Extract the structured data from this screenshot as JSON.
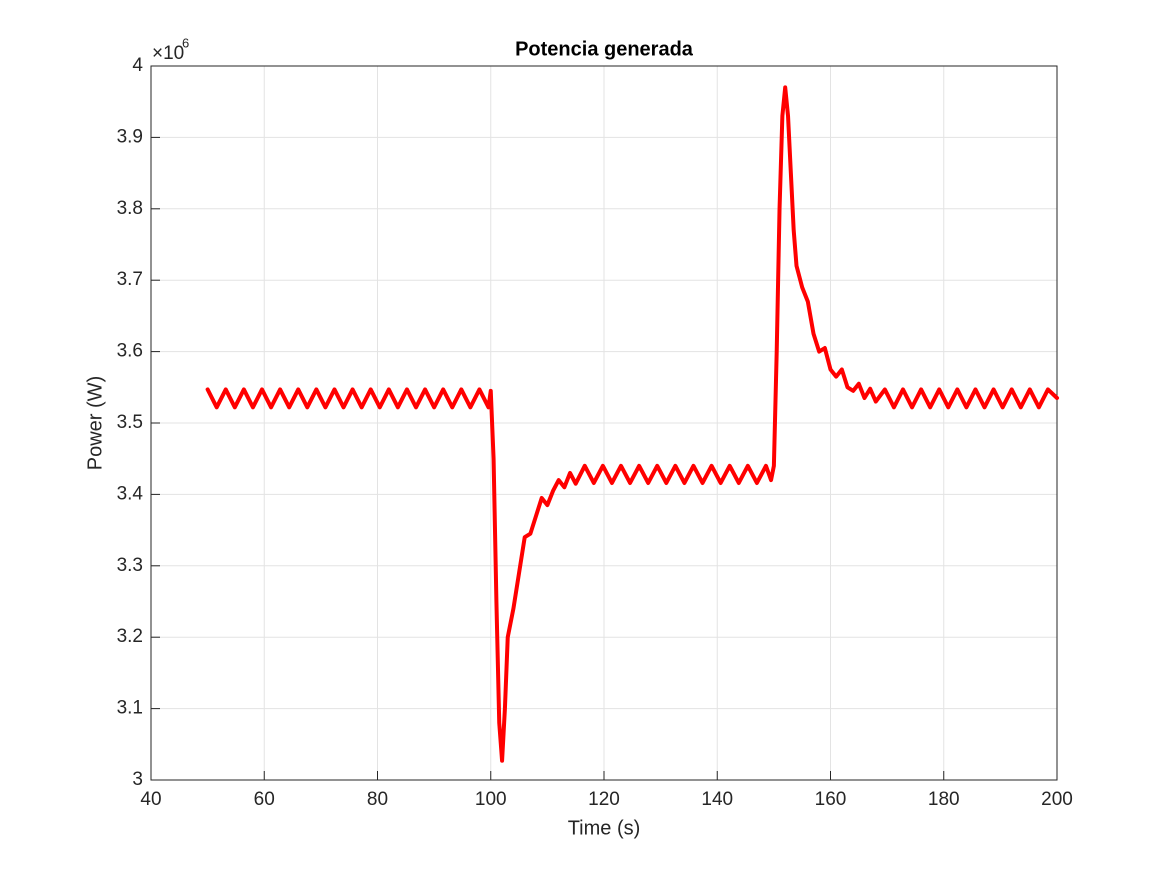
{
  "chart_data": {
    "type": "line",
    "title": "Potencia generada",
    "x_label": "Time (s)",
    "y_label": "Power (W)",
    "y_multiplier": "×10",
    "y_multiplier_exponent": "6",
    "xlim": [
      40,
      200
    ],
    "ylim": [
      3,
      4
    ],
    "xticks": [
      40,
      60,
      80,
      100,
      120,
      140,
      160,
      180,
      200
    ],
    "yticks": [
      3,
      3.1,
      3.2,
      3.3,
      3.4,
      3.5,
      3.6,
      3.7,
      3.8,
      3.9,
      4
    ],
    "grid": true,
    "x": [
      50,
      51.6,
      53.2,
      54.8,
      56.4,
      58,
      59.6,
      61.2,
      62.8,
      64.4,
      66,
      67.6,
      69.2,
      70.8,
      72.4,
      74,
      75.6,
      77.2,
      78.8,
      80.4,
      82,
      83.6,
      85.2,
      86.8,
      88.4,
      90,
      91.6,
      93.2,
      94.8,
      96.4,
      98,
      99.6,
      100,
      100.5,
      101,
      101.5,
      102,
      102.5,
      103,
      104,
      105,
      106,
      107,
      108,
      109,
      110,
      111,
      112,
      113,
      114,
      115,
      116.6,
      118.2,
      119.8,
      121.4,
      123,
      124.6,
      126.2,
      127.8,
      129.4,
      131,
      132.6,
      134.2,
      135.8,
      137.4,
      139,
      140.6,
      142.2,
      143.8,
      145.4,
      147,
      148.6,
      149.5,
      150,
      150.5,
      151,
      151.5,
      152,
      152.5,
      153,
      153.5,
      154,
      155,
      156,
      157,
      158,
      159,
      160,
      161,
      162,
      163,
      164,
      165,
      166,
      167,
      168,
      169.6,
      171.2,
      172.8,
      174.4,
      176,
      177.6,
      179.2,
      180.8,
      182.4,
      184,
      185.6,
      187.2,
      188.8,
      190.4,
      192,
      193.6,
      195.2,
      196.8,
      198.4,
      200
    ],
    "series": [
      {
        "name": "Power",
        "color": "#ff0000",
        "values": [
          3.547,
          3.522,
          3.547,
          3.522,
          3.547,
          3.522,
          3.547,
          3.522,
          3.547,
          3.522,
          3.547,
          3.522,
          3.547,
          3.522,
          3.547,
          3.522,
          3.547,
          3.522,
          3.547,
          3.522,
          3.547,
          3.522,
          3.547,
          3.522,
          3.547,
          3.522,
          3.547,
          3.522,
          3.547,
          3.522,
          3.547,
          3.522,
          3.545,
          3.45,
          3.25,
          3.08,
          3.027,
          3.1,
          3.2,
          3.24,
          3.29,
          3.34,
          3.345,
          3.37,
          3.395,
          3.385,
          3.405,
          3.42,
          3.41,
          3.43,
          3.415,
          3.44,
          3.416,
          3.44,
          3.416,
          3.44,
          3.416,
          3.44,
          3.416,
          3.44,
          3.416,
          3.44,
          3.416,
          3.44,
          3.416,
          3.44,
          3.416,
          3.44,
          3.416,
          3.44,
          3.416,
          3.44,
          3.42,
          3.44,
          3.6,
          3.8,
          3.93,
          3.97,
          3.93,
          3.85,
          3.77,
          3.72,
          3.69,
          3.67,
          3.625,
          3.6,
          3.605,
          3.575,
          3.565,
          3.575,
          3.55,
          3.545,
          3.555,
          3.535,
          3.548,
          3.53,
          3.547,
          3.522,
          3.547,
          3.522,
          3.547,
          3.522,
          3.547,
          3.522,
          3.547,
          3.522,
          3.547,
          3.522,
          3.547,
          3.522,
          3.547,
          3.522,
          3.547,
          3.522,
          3.547,
          3.535
        ]
      }
    ]
  }
}
